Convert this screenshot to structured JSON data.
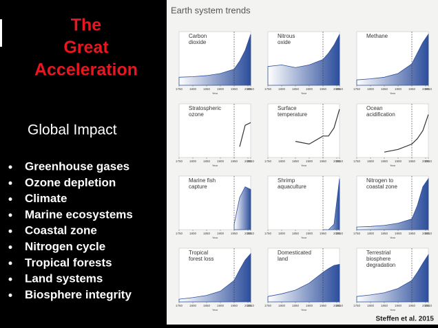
{
  "slide": {
    "title_lines": [
      "The",
      "Great",
      "Acceleration"
    ],
    "subtitle": "Global Impact",
    "bullets": [
      "Greenhouse gases",
      "Ozone depletion",
      "Climate",
      "Marine ecosystems",
      "Coastal zone",
      "Nitrogen cycle",
      "Tropical forests",
      "Land systems",
      "Biosphere integrity"
    ]
  },
  "figure": {
    "title": "Earth system trends",
    "source": "Steffen et al. 2015",
    "x_label": "Year",
    "x_ticks": [
      1750,
      1800,
      1850,
      1900,
      1950,
      2000,
      2010
    ],
    "years": [
      1750,
      1800,
      1850,
      1900,
      1950,
      1970,
      1990,
      2010
    ],
    "panels": [
      {
        "label": [
          "Carbon",
          "dioxide"
        ],
        "fill": true,
        "values": [
          15,
          16,
          18,
          22,
          30,
          45,
          65,
          95
        ]
      },
      {
        "label": [
          "Nitrous",
          "oxide"
        ],
        "fill": true,
        "values": [
          35,
          38,
          33,
          38,
          48,
          60,
          75,
          95
        ]
      },
      {
        "label": [
          "Methane"
        ],
        "fill": true,
        "values": [
          10,
          12,
          15,
          22,
          40,
          60,
          80,
          95
        ]
      },
      {
        "label": [
          "Stratospheric",
          "ozone"
        ],
        "fill": false,
        "values": [
          null,
          null,
          null,
          null,
          null,
          20,
          60,
          65
        ]
      },
      {
        "label": [
          "Surface",
          "temperature"
        ],
        "fill": false,
        "values": [
          null,
          null,
          30,
          25,
          40,
          40,
          55,
          90
        ]
      },
      {
        "label": [
          "Ocean",
          "acidification"
        ],
        "fill": false,
        "values": [
          null,
          null,
          10,
          15,
          25,
          35,
          50,
          80
        ]
      },
      {
        "label": [
          "Marine fish",
          "capture"
        ],
        "fill": true,
        "values": [
          null,
          null,
          null,
          null,
          10,
          60,
          80,
          75
        ]
      },
      {
        "label": [
          "Shrimp",
          "aquaculture"
        ],
        "fill": true,
        "values": [
          null,
          null,
          null,
          null,
          0,
          0,
          10,
          95
        ]
      },
      {
        "label": [
          "Nitrogen to",
          "coastal zone"
        ],
        "fill": true,
        "values": [
          5,
          6,
          8,
          12,
          20,
          45,
          80,
          95
        ]
      },
      {
        "label": [
          "Tropical",
          "forest loss"
        ],
        "fill": true,
        "values": [
          5,
          8,
          12,
          20,
          40,
          60,
          78,
          90
        ]
      },
      {
        "label": [
          "Domesticated",
          "land"
        ],
        "fill": true,
        "values": [
          10,
          15,
          22,
          35,
          55,
          62,
          68,
          70
        ]
      },
      {
        "label": [
          "Terrestrial",
          "biosphere",
          "degradation"
        ],
        "fill": true,
        "values": [
          10,
          13,
          17,
          25,
          40,
          55,
          72,
          88
        ]
      }
    ]
  }
}
